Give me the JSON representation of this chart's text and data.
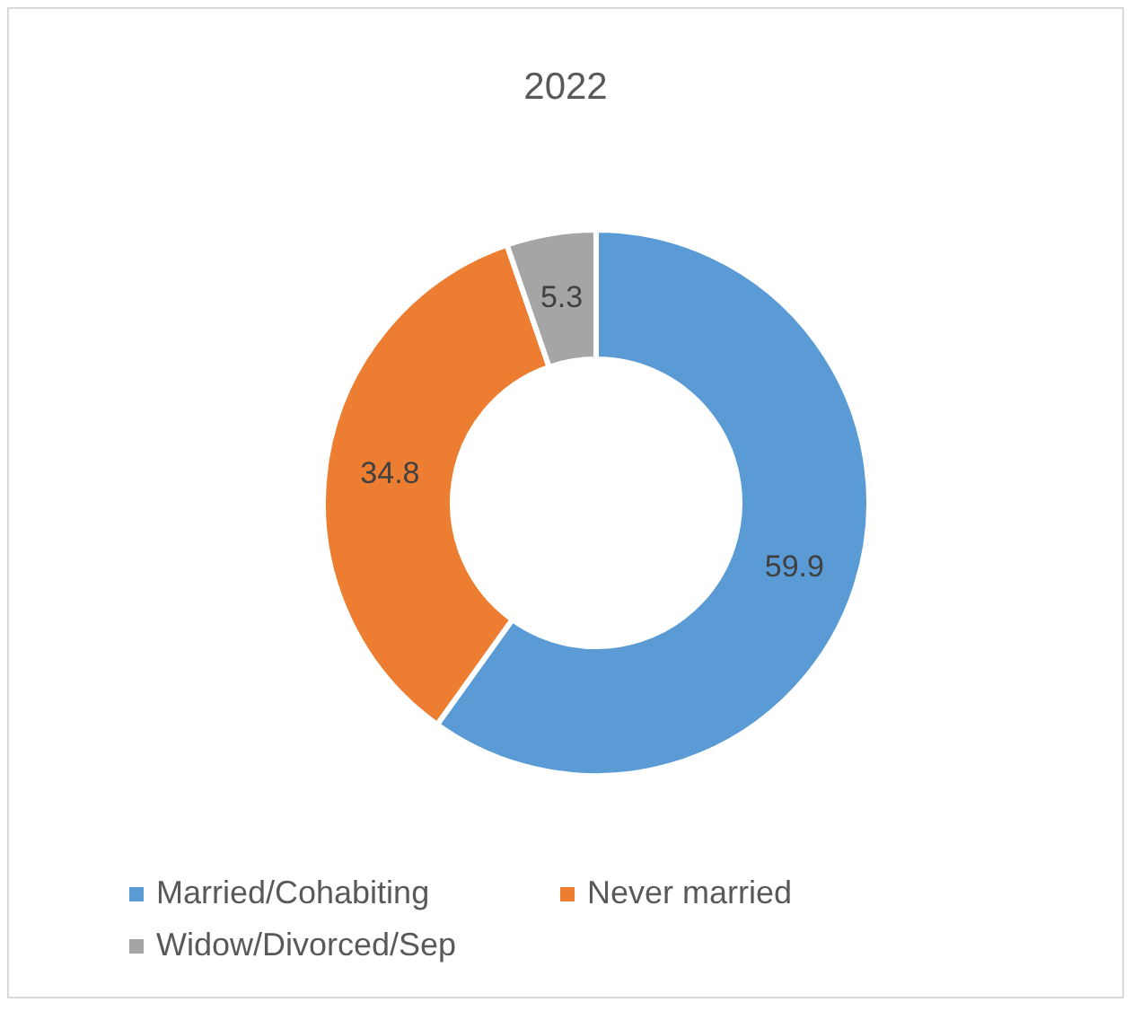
{
  "chart_data": {
    "type": "donut",
    "title": "2022",
    "categories": [
      "Married/Cohabiting",
      "Never married",
      "Widow/Divorced/Sep"
    ],
    "values": [
      59.9,
      34.8,
      5.3
    ],
    "colors": [
      "#5b9bd5",
      "#ed7d31",
      "#a5a5a5"
    ],
    "data_labels": true,
    "legend": "bottom"
  }
}
